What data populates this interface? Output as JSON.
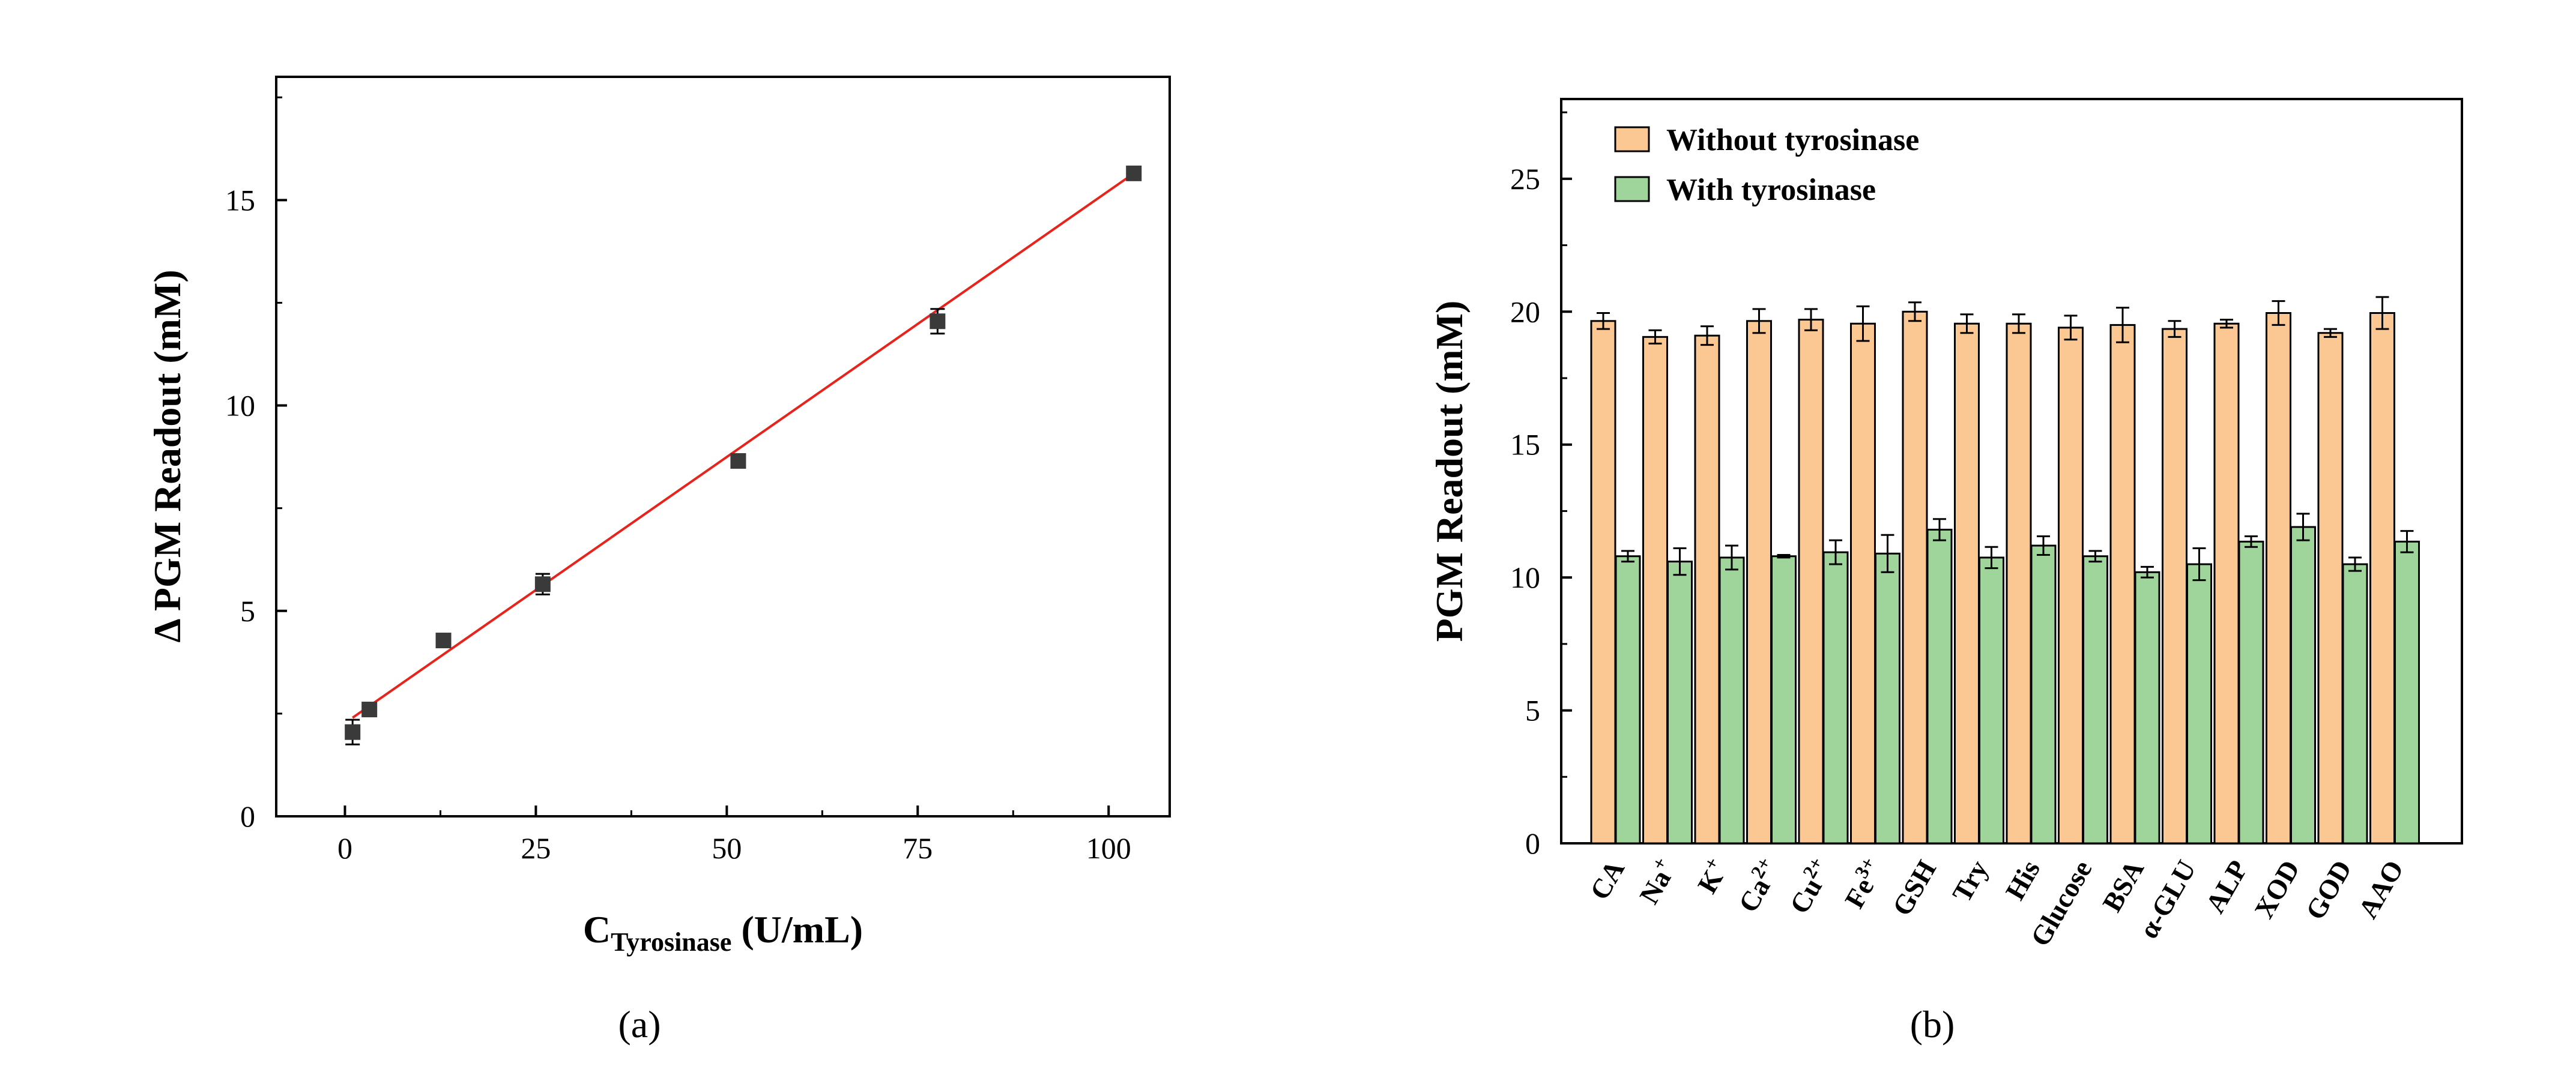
{
  "chart_data": [
    {
      "type": "scatter",
      "panel_label": "(a)",
      "title": "",
      "xlabel_main": "C",
      "xlabel_sub": "Tyrosinase",
      "xlabel_unit": " (U/mL)",
      "ylabel": "Δ PGM Readout (mM)",
      "xlim": [
        -9,
        108
      ],
      "ylim": [
        0,
        18
      ],
      "xticks": [
        0,
        25,
        50,
        75,
        100
      ],
      "yticks": [
        0,
        5,
        10,
        15
      ],
      "tick_labels_x": [
        "0",
        "25",
        "50",
        "75",
        "100"
      ],
      "tick_labels_y": [
        "0",
        "5",
        "10",
        "15"
      ],
      "points": [
        {
          "x": 1.0,
          "y": 2.05,
          "err": 0.3
        },
        {
          "x": 3.2,
          "y": 2.6,
          "err": 0.1
        },
        {
          "x": 12.9,
          "y": 4.28,
          "err": 0.1
        },
        {
          "x": 25.9,
          "y": 5.65,
          "err": 0.25
        },
        {
          "x": 51.5,
          "y": 8.65,
          "err": 0.12
        },
        {
          "x": 77.6,
          "y": 12.05,
          "err": 0.3
        },
        {
          "x": 103.3,
          "y": 15.65,
          "err": 0.1
        }
      ],
      "fit_line": {
        "x": [
          1.0,
          103.3
        ],
        "y": [
          2.4,
          15.65
        ]
      },
      "colors": {
        "marker": "#3a3a3a",
        "fit": "#e8231c"
      }
    },
    {
      "type": "bar",
      "panel_label": "(b)",
      "title": "",
      "xlabel": "",
      "ylabel": "PGM Readout (mM)",
      "ylim": [
        0,
        28
      ],
      "yticks": [
        0,
        5,
        10,
        15,
        20,
        25
      ],
      "tick_labels_y": [
        "0",
        "5",
        "10",
        "15",
        "20",
        "25"
      ],
      "categories": [
        {
          "label": "CA",
          "sup": ""
        },
        {
          "label": "Na",
          "sup": "+"
        },
        {
          "label": "K",
          "sup": "+"
        },
        {
          "label": "Ca",
          "sup": "2+"
        },
        {
          "label": "Cu",
          "sup": "2+"
        },
        {
          "label": "Fe",
          "sup": "3+"
        },
        {
          "label": "GSH",
          "sup": ""
        },
        {
          "label": "Try",
          "sup": ""
        },
        {
          "label": "His",
          "sup": ""
        },
        {
          "label": "Glucose",
          "sup": ""
        },
        {
          "label": "BSA",
          "sup": ""
        },
        {
          "label": "α-GLU",
          "sup": ""
        },
        {
          "label": "ALP",
          "sup": ""
        },
        {
          "label": "XOD",
          "sup": ""
        },
        {
          "label": "GOD",
          "sup": ""
        },
        {
          "label": "AAO",
          "sup": ""
        }
      ],
      "series": [
        {
          "name": "Without tyrosinase",
          "color": "#fbc894",
          "values": [
            19.65,
            19.05,
            19.1,
            19.65,
            19.7,
            19.55,
            20.0,
            19.55,
            19.55,
            19.4,
            19.5,
            19.35,
            19.55,
            19.95,
            19.2,
            19.95
          ],
          "errors": [
            0.3,
            0.25,
            0.35,
            0.45,
            0.4,
            0.65,
            0.35,
            0.35,
            0.35,
            0.45,
            0.65,
            0.3,
            0.15,
            0.45,
            0.15,
            0.6
          ]
        },
        {
          "name": "With tyrosinase",
          "color": "#9fd59b",
          "values": [
            10.8,
            10.6,
            10.75,
            10.8,
            10.95,
            10.9,
            11.8,
            10.75,
            11.2,
            10.8,
            10.2,
            10.5,
            11.35,
            11.9,
            10.5,
            11.35
          ],
          "errors": [
            0.2,
            0.5,
            0.45,
            0.05,
            0.45,
            0.7,
            0.4,
            0.4,
            0.35,
            0.2,
            0.2,
            0.6,
            0.2,
            0.5,
            0.25,
            0.4
          ]
        }
      ],
      "legend_position": "top-left"
    }
  ]
}
